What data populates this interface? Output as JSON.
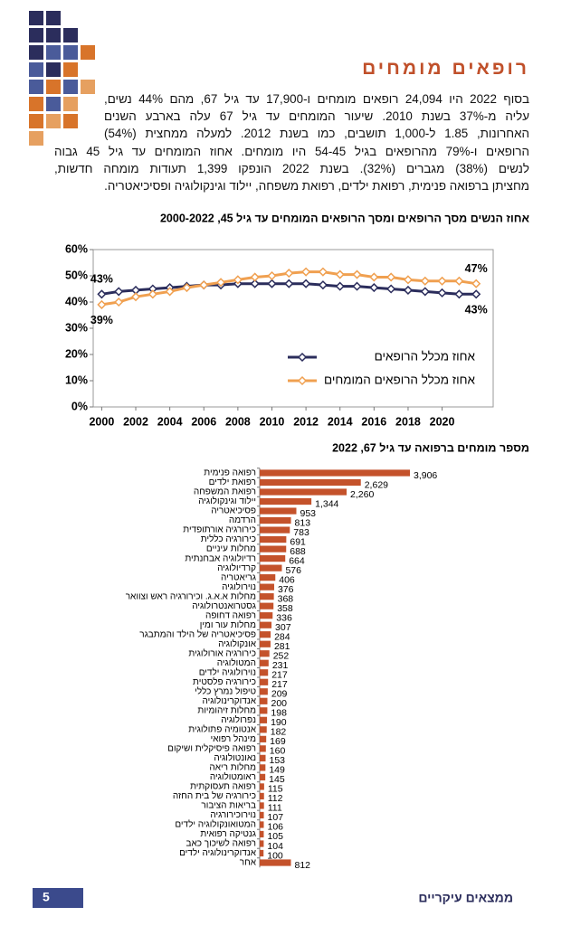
{
  "header": {
    "title": "רופאים מומחים"
  },
  "paragraph": [
    "בסוף 2022 היו 24,094 רופאים מומחים ו-17,900 עד גיל 67, מהם 44% נשים,",
    "עליה מ-37% בשנת 2010. שיעור המומחים עד גיל 67 עלה בארבע השנים",
    "האחרונות, 1.85 ל-1,000 תושבים, כמו בשנת 2012. למעלה ממחצית (54%)",
    "הרופאים ו-79% מהרופאים בגיל 54-45 היו מומחים. אחוז המומחים עד גיל 45 גבוה",
    "לנשים (38%) מגברים (32%). בשנת 2022 הונפקו 1,399 תעודות מומחה חדשות,",
    "מחציתן ברפואה פנימית, רפואת ילדים, רפואת משפחה, יילוד וגינקולוגיה ופסיכיאטריה."
  ],
  "chart_data": [
    {
      "type": "line",
      "title": "אחוז הנשים מסך הרופאים ומסך הרופאים המומחים עד גיל 45, 2000-2022",
      "x": [
        2000,
        2001,
        2002,
        2003,
        2004,
        2005,
        2006,
        2007,
        2008,
        2009,
        2010,
        2011,
        2012,
        2013,
        2014,
        2015,
        2016,
        2017,
        2018,
        2019,
        2020,
        2021,
        2022
      ],
      "series": [
        {
          "name": "אחוז מכלל הרופאים",
          "color": "#2b2d5c",
          "values": [
            43,
            44,
            44.5,
            45,
            45.5,
            46,
            46.5,
            46.5,
            47,
            47,
            47,
            47,
            47,
            46.5,
            46,
            46,
            45.5,
            45,
            44.5,
            44,
            43.5,
            43,
            43
          ],
          "value_labels": [
            "43%",
            null,
            null,
            null,
            null,
            null,
            null,
            null,
            null,
            null,
            null,
            null,
            null,
            null,
            null,
            null,
            null,
            null,
            null,
            null,
            null,
            null,
            "43%"
          ]
        },
        {
          "name": "אחוז מכלל הרופאים המומחים",
          "color": "#f0a050",
          "values": [
            39,
            40,
            42,
            43,
            44,
            45.5,
            46.5,
            47.5,
            48.5,
            49.5,
            50,
            51,
            51.5,
            51.5,
            50.5,
            50.5,
            49.5,
            49.5,
            48.5,
            48,
            48,
            48,
            47
          ],
          "value_labels": [
            "39%",
            null,
            null,
            null,
            null,
            null,
            null,
            null,
            null,
            null,
            null,
            null,
            null,
            null,
            null,
            null,
            null,
            null,
            null,
            null,
            null,
            null,
            "47%"
          ]
        }
      ],
      "xlim": [
        1999.5,
        2023
      ],
      "xticks": [
        2000,
        2002,
        2004,
        2006,
        2008,
        2010,
        2012,
        2014,
        2016,
        2018,
        2020
      ],
      "ylim": [
        0,
        60
      ],
      "yticks": [
        {
          "value": 0,
          "label": "0%"
        },
        {
          "value": 10,
          "label": "10%"
        },
        {
          "value": 20,
          "label": "20%"
        },
        {
          "value": 30,
          "label": "30%"
        },
        {
          "value": 40,
          "label": "40%"
        },
        {
          "value": 50,
          "label": "50%"
        },
        {
          "value": 60,
          "label": "60%"
        }
      ],
      "legend": "lower right"
    },
    {
      "type": "barh",
      "title": "מספר מומחים ברפואה עד גיל 67, 2022",
      "color": "#c4522b",
      "categories": [
        "רפואה פנימית",
        "רפואת ילדים",
        "רפואת המשפחה",
        "יילוד וגינקולוגיה",
        "פסיכיאטריה",
        "הרדמה",
        "כירורגיה אורתופדית",
        "כירורגיה כללית",
        "מחלות עיניים",
        "רדיולוגיה אבחנתית",
        "קרדיולוגיה",
        "גריאטריה",
        "נוירולוגיה",
        "מחלות א.א.ג. וכירורגיה ראש וצוואר",
        "גסטרואנטרולוגיה",
        "רפואה דחופה",
        "מחלות עור ומין",
        "פסיכיאטריה של הילד והמתבגר",
        "אונקולוגיה",
        "כירורגיה אורולוגית",
        "המטולוגיה",
        "נוירולוגיה ילדים",
        "כירורגיה פלסטית",
        "טיפול נמרץ כללי",
        "אנדוקרינולוגיה",
        "מחלות זיהומיות",
        "נפרולוגיה",
        "אנטומיה פתולוגית",
        "מינהל רפואי",
        "רפואה פיסיקלית ושיקום",
        "נאונטולוגיה",
        "מחלות ריאה",
        "ראומטולוגיה",
        "רפואה תעסוקתית",
        "כירורגיה של בית החזה",
        "בריאות הציבור",
        "נוירוכירורגיה",
        "המטואונקולוגיה ילדים",
        "גנטיקה רפואית",
        "רפואה לשיכוך כאב",
        "אנדוקרינולוגיה ילדים",
        "אחר"
      ],
      "values": [
        3906,
        2629,
        2260,
        1344,
        953,
        813,
        783,
        691,
        688,
        664,
        576,
        406,
        376,
        368,
        358,
        336,
        307,
        284,
        281,
        252,
        231,
        217,
        217,
        209,
        200,
        198,
        190,
        182,
        169,
        160,
        153,
        149,
        145,
        115,
        112,
        111,
        107,
        106,
        105,
        104,
        100,
        812
      ],
      "value_labels": [
        "3,906",
        "2,629",
        "2,260",
        "1,344",
        null,
        null,
        null,
        null,
        null,
        null,
        null,
        null,
        null,
        null,
        null,
        null,
        null,
        null,
        null,
        null,
        null,
        null,
        null,
        null,
        null,
        null,
        null,
        null,
        null,
        null,
        null,
        null,
        null,
        null,
        null,
        null,
        null,
        null,
        null,
        null,
        null,
        null
      ]
    }
  ],
  "footer": {
    "page_number": "5",
    "section": "ממצאים עיקריים"
  }
}
